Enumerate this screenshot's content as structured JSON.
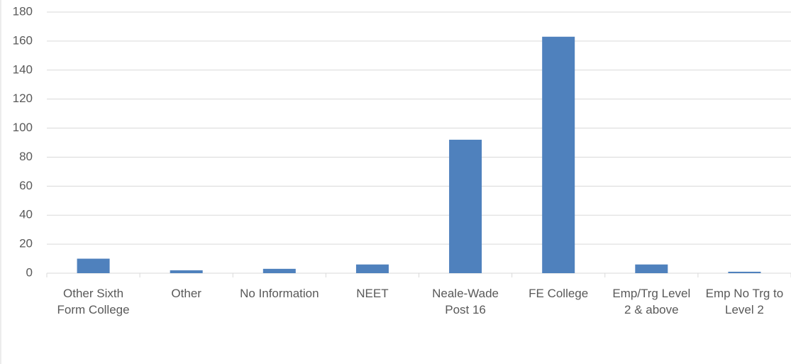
{
  "chart_data": {
    "type": "bar",
    "categories": [
      "Other Sixth Form College",
      "Other",
      "No Information",
      "NEET",
      "Neale-Wade Post 16",
      "FE College",
      "Emp/Trg Level 2 & above",
      "Emp No Trg to Level 2"
    ],
    "values": [
      10,
      2,
      3,
      6,
      92,
      163,
      6,
      1
    ],
    "color": "#4f81bd",
    "ylim": [
      0,
      180
    ],
    "yticks": [
      0,
      20,
      40,
      60,
      80,
      100,
      120,
      140,
      160,
      180
    ],
    "grid": true
  }
}
